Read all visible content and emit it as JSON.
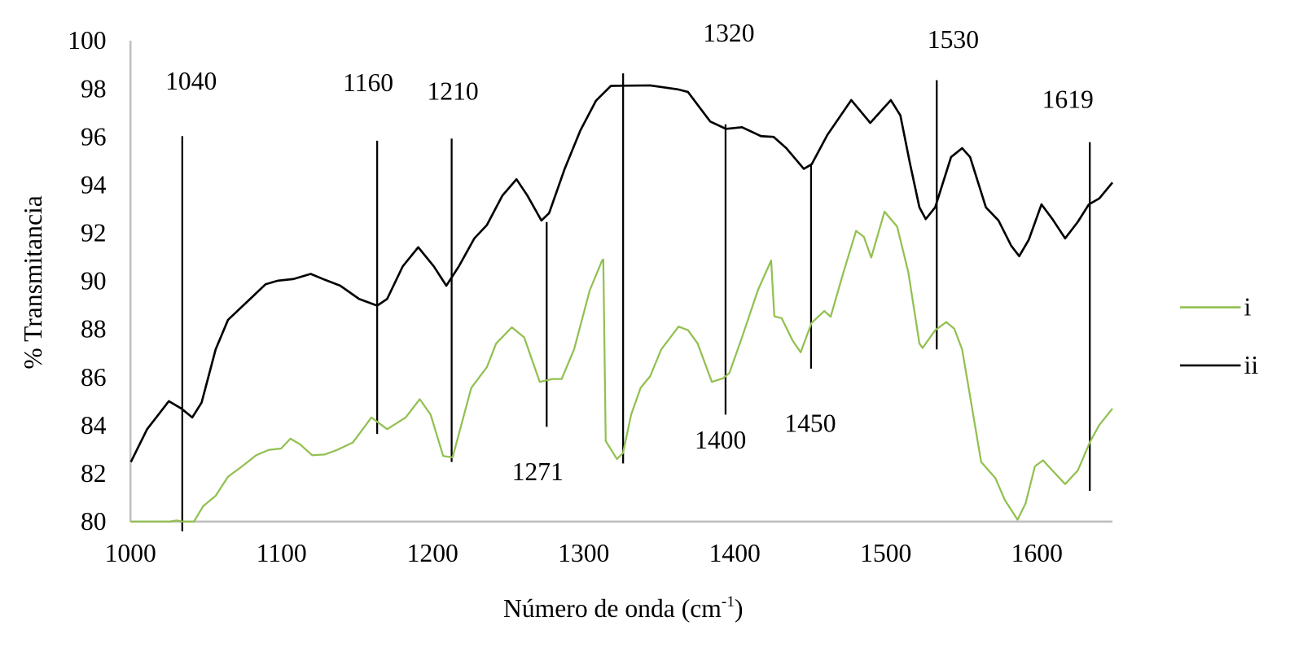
{
  "chart_data": {
    "type": "line",
    "title": "",
    "xlabel": "Número de onda (cm",
    "xlabel_sup": "-1",
    "xlabel_close": ")",
    "ylabel": "% Transmitancia",
    "xlim": [
      1000,
      1650
    ],
    "ylim": [
      80,
      100
    ],
    "xticks": [
      1000,
      1100,
      1200,
      1300,
      1400,
      1500,
      1600
    ],
    "yticks": [
      80,
      82,
      84,
      86,
      88,
      90,
      92,
      94,
      96,
      98,
      100
    ],
    "grid": false,
    "legend_position": "right",
    "series": [
      {
        "name": "i",
        "color": "#92c050",
        "points": [
          [
            1000,
            80
          ],
          [
            1020,
            80
          ],
          [
            1025.4,
            79.95
          ],
          [
            1030.6,
            80.05
          ],
          [
            1034.7,
            79.93
          ],
          [
            1042,
            79.96
          ],
          [
            1048.1,
            80.64
          ],
          [
            1056.4,
            81.07
          ],
          [
            1064.6,
            81.87
          ],
          [
            1073.9,
            82.3
          ],
          [
            1083.2,
            82.76
          ],
          [
            1091.5,
            82.98
          ],
          [
            1099.7,
            83.04
          ],
          [
            1105.9,
            83.45
          ],
          [
            1112.1,
            83.22
          ],
          [
            1120.3,
            82.76
          ],
          [
            1128.6,
            82.79
          ],
          [
            1136.8,
            82.98
          ],
          [
            1147.2,
            83.29
          ],
          [
            1159.5,
            84.33
          ],
          [
            1169.9,
            83.84
          ],
          [
            1182.2,
            84.33
          ],
          [
            1191.5,
            85.09
          ],
          [
            1198.7,
            84.45
          ],
          [
            1207,
            82.73
          ],
          [
            1213.2,
            82.67
          ],
          [
            1225.6,
            85.56
          ],
          [
            1235.9,
            86.42
          ],
          [
            1242.1,
            87.41
          ],
          [
            1252.4,
            88.08
          ],
          [
            1260.6,
            87.66
          ],
          [
            1270.9,
            85.81
          ],
          [
            1279.2,
            85.93
          ],
          [
            1285.4,
            85.93
          ],
          [
            1293.6,
            87.16
          ],
          [
            1304,
            89.62
          ],
          [
            1312.2,
            90.86
          ],
          [
            1313,
            90.9
          ],
          [
            1314.6,
            83.35
          ],
          [
            1322,
            82.6
          ],
          [
            1326,
            82.85
          ],
          [
            1331.4,
            84.45
          ],
          [
            1337.7,
            85.56
          ],
          [
            1344,
            86.05
          ],
          [
            1351.3,
            87.16
          ],
          [
            1362.8,
            88.11
          ],
          [
            1369.1,
            87.96
          ],
          [
            1375.4,
            87.41
          ],
          [
            1384.8,
            85.81
          ],
          [
            1392.2,
            85.96
          ],
          [
            1396.4,
            86.18
          ],
          [
            1404.8,
            87.66
          ],
          [
            1415.3,
            89.62
          ],
          [
            1424.1,
            90.86
          ],
          [
            1426.2,
            88.54
          ],
          [
            1431,
            88.46
          ],
          [
            1438.3,
            87.53
          ],
          [
            1443.6,
            87.04
          ],
          [
            1450.9,
            88.27
          ],
          [
            1459.3,
            88.76
          ],
          [
            1463.5,
            88.52
          ],
          [
            1471.9,
            90.36
          ],
          [
            1480.3,
            92.09
          ],
          [
            1485.5,
            91.84
          ],
          [
            1490.3,
            90.98
          ],
          [
            1499.1,
            92.89
          ],
          [
            1507.5,
            92.27
          ],
          [
            1514.9,
            90.36
          ],
          [
            1522.2,
            87.41
          ],
          [
            1524.3,
            87.22
          ],
          [
            1532.7,
            87.96
          ],
          [
            1540,
            88.3
          ],
          [
            1545.3,
            88.02
          ],
          [
            1550.5,
            87.16
          ],
          [
            1556.8,
            84.82
          ],
          [
            1563.1,
            82.48
          ],
          [
            1572.5,
            81.81
          ],
          [
            1578.8,
            80.89
          ],
          [
            1587.2,
            80.08
          ],
          [
            1592.5,
            80.76
          ],
          [
            1598.7,
            82.3
          ],
          [
            1604,
            82.55
          ],
          [
            1610.3,
            82.12
          ],
          [
            1618.7,
            81.56
          ],
          [
            1627,
            82.12
          ],
          [
            1635.4,
            83.35
          ],
          [
            1641.3,
            84.02
          ],
          [
            1650,
            84.7
          ]
        ]
      },
      {
        "name": "ii",
        "color": "#000000",
        "points": [
          [
            1000.3,
            82.48
          ],
          [
            1011,
            83.84
          ],
          [
            1025.4,
            85.01
          ],
          [
            1033.7,
            84.7
          ],
          [
            1040.9,
            84.33
          ],
          [
            1047.1,
            84.95
          ],
          [
            1056.4,
            87.16
          ],
          [
            1064.6,
            88.39
          ],
          [
            1077,
            89.13
          ],
          [
            1089.4,
            89.87
          ],
          [
            1097.7,
            90.02
          ],
          [
            1108,
            90.09
          ],
          [
            1119.3,
            90.3
          ],
          [
            1128.6,
            90.06
          ],
          [
            1138.9,
            89.81
          ],
          [
            1151.3,
            89.26
          ],
          [
            1163.3,
            88.98
          ],
          [
            1169.9,
            89.26
          ],
          [
            1180.2,
            90.61
          ],
          [
            1190.5,
            91.41
          ],
          [
            1200.8,
            90.61
          ],
          [
            1209.1,
            89.81
          ],
          [
            1217.3,
            90.61
          ],
          [
            1227.6,
            91.78
          ],
          [
            1235.9,
            92.33
          ],
          [
            1246.2,
            93.56
          ],
          [
            1255.5,
            94.24
          ],
          [
            1262.7,
            93.56
          ],
          [
            1272,
            92.52
          ],
          [
            1277.1,
            92.83
          ],
          [
            1287.4,
            94.67
          ],
          [
            1297.8,
            96.27
          ],
          [
            1308.1,
            97.5
          ],
          [
            1318,
            98.12
          ],
          [
            1344,
            98.14
          ],
          [
            1362.8,
            97.97
          ],
          [
            1369,
            97.87
          ],
          [
            1383.8,
            96.64
          ],
          [
            1394.3,
            96.33
          ],
          [
            1404.8,
            96.4
          ],
          [
            1417.4,
            96.03
          ],
          [
            1425.7,
            96.0
          ],
          [
            1434.1,
            95.53
          ],
          [
            1445.7,
            94.67
          ],
          [
            1450.9,
            94.86
          ],
          [
            1461.4,
            96.09
          ],
          [
            1477.1,
            97.53
          ],
          [
            1489.7,
            96.58
          ],
          [
            1503.3,
            97.53
          ],
          [
            1509.6,
            96.89
          ],
          [
            1515.9,
            94.92
          ],
          [
            1522.2,
            93.07
          ],
          [
            1526.4,
            92.58
          ],
          [
            1532.7,
            93.07
          ],
          [
            1543.2,
            95.16
          ],
          [
            1550.5,
            95.53
          ],
          [
            1555.8,
            95.16
          ],
          [
            1566.2,
            93.07
          ],
          [
            1574.6,
            92.52
          ],
          [
            1583,
            91.47
          ],
          [
            1588.3,
            91.04
          ],
          [
            1594.6,
            91.72
          ],
          [
            1603,
            93.19
          ],
          [
            1610.3,
            92.58
          ],
          [
            1618.7,
            91.78
          ],
          [
            1627,
            92.46
          ],
          [
            1634.4,
            93.19
          ],
          [
            1641.3,
            93.44
          ],
          [
            1650,
            94.1
          ]
        ]
      }
    ],
    "annotations": [
      {
        "label": "1040",
        "x": 1034.3,
        "y_top": 96.03,
        "y_bottom": 79.6
      },
      {
        "label": "1160",
        "x": 1163.3,
        "y_top": 95.84,
        "y_bottom": 83.65
      },
      {
        "label": "1210",
        "x": 1212.6,
        "y_top": 95.93,
        "y_bottom": 82.48
      },
      {
        "label": "1271",
        "x": 1275.5,
        "y_top": 92.46,
        "y_bottom": 83.94
      },
      {
        "label": "1320",
        "x": 1326.1,
        "y_top": 98.64,
        "y_bottom": 82.42
      },
      {
        "label": "1400",
        "x": 1393.9,
        "y_top": 96.52,
        "y_bottom": 84.45
      },
      {
        "label": "1450",
        "x": 1450.5,
        "y_top": 94.86,
        "y_bottom": 86.36
      },
      {
        "label": "1530",
        "x": 1533.7,
        "y_top": 98.36,
        "y_bottom": 87.16
      },
      {
        "label": "1619",
        "x": 1635.0,
        "y_top": 95.78,
        "y_bottom": 81.28
      }
    ]
  }
}
